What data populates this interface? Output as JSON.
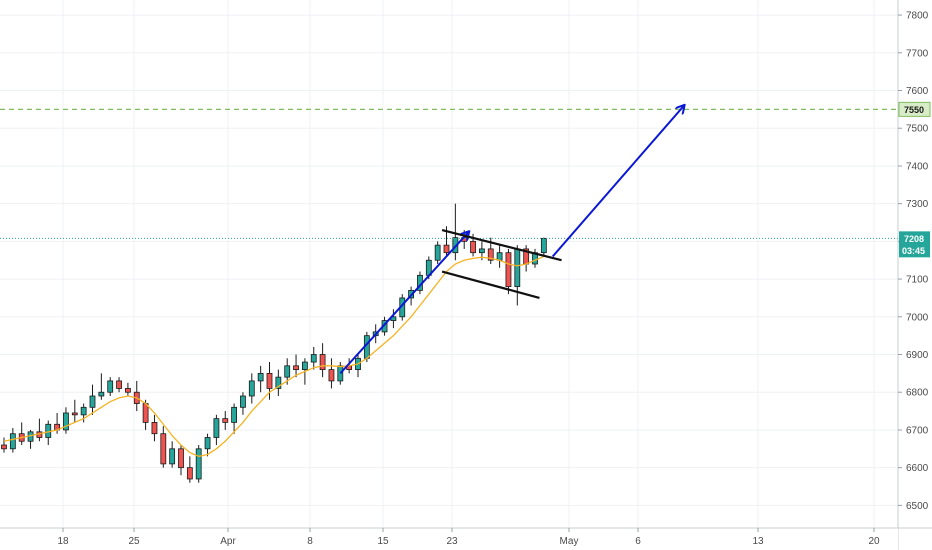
{
  "chart_data": {
    "type": "candlestick",
    "title": "",
    "xlabel": "",
    "ylabel": "",
    "ylim": [
      6440,
      7840
    ],
    "y_ticks": [
      6500,
      6600,
      6700,
      6800,
      6900,
      7000,
      7100,
      7200,
      7300,
      7400,
      7500,
      7600,
      7700,
      7800
    ],
    "x_ticks": [
      "18",
      "25",
      "Apr",
      "8",
      "15",
      "23",
      "May",
      "6",
      "13",
      "20"
    ],
    "grid": true,
    "colors": {
      "up": "#26a69a",
      "down": "#ef5350",
      "candle_border": "#1b1b1b",
      "moving_average": "#f5b324",
      "arrows": "#0a18d6",
      "flag_lines": "#111111",
      "target_line": "#7fbf5f",
      "last_price_line": "#26a69a"
    },
    "price_axis_badges": {
      "last_price": "7208",
      "countdown": "03:45",
      "target": "7550"
    },
    "target_level": 7550,
    "last_price": 7208,
    "ohlc": [
      [
        6660,
        6680,
        6640,
        6650
      ],
      [
        6650,
        6705,
        6640,
        6690
      ],
      [
        6690,
        6720,
        6660,
        6670
      ],
      [
        6670,
        6700,
        6650,
        6695
      ],
      [
        6695,
        6730,
        6670,
        6680
      ],
      [
        6680,
        6725,
        6660,
        6715
      ],
      [
        6715,
        6745,
        6690,
        6700
      ],
      [
        6700,
        6760,
        6690,
        6745
      ],
      [
        6745,
        6780,
        6720,
        6740
      ],
      [
        6740,
        6770,
        6720,
        6760
      ],
      [
        6760,
        6820,
        6740,
        6790
      ],
      [
        6790,
        6850,
        6780,
        6800
      ],
      [
        6800,
        6840,
        6790,
        6830
      ],
      [
        6830,
        6840,
        6800,
        6810
      ],
      [
        6810,
        6825,
        6790,
        6800
      ],
      [
        6800,
        6830,
        6750,
        6770
      ],
      [
        6770,
        6780,
        6700,
        6720
      ],
      [
        6720,
        6740,
        6670,
        6690
      ],
      [
        6690,
        6710,
        6600,
        6610
      ],
      [
        6610,
        6670,
        6600,
        6650
      ],
      [
        6650,
        6660,
        6580,
        6600
      ],
      [
        6600,
        6630,
        6560,
        6570
      ],
      [
        6570,
        6660,
        6560,
        6650
      ],
      [
        6650,
        6690,
        6630,
        6680
      ],
      [
        6680,
        6740,
        6660,
        6730
      ],
      [
        6730,
        6750,
        6700,
        6720
      ],
      [
        6720,
        6770,
        6690,
        6760
      ],
      [
        6760,
        6800,
        6740,
        6790
      ],
      [
        6790,
        6850,
        6770,
        6830
      ],
      [
        6830,
        6870,
        6800,
        6850
      ],
      [
        6850,
        6880,
        6780,
        6810
      ],
      [
        6810,
        6860,
        6790,
        6840
      ],
      [
        6840,
        6890,
        6820,
        6870
      ],
      [
        6870,
        6900,
        6840,
        6860
      ],
      [
        6860,
        6890,
        6820,
        6880
      ],
      [
        6880,
        6920,
        6860,
        6900
      ],
      [
        6900,
        6930,
        6840,
        6860
      ],
      [
        6860,
        6890,
        6810,
        6830
      ],
      [
        6830,
        6880,
        6820,
        6870
      ],
      [
        6870,
        6890,
        6850,
        6860
      ],
      [
        6860,
        6900,
        6840,
        6890
      ],
      [
        6890,
        6960,
        6880,
        6950
      ],
      [
        6950,
        6980,
        6930,
        6960
      ],
      [
        6960,
        7000,
        6950,
        6990
      ],
      [
        6990,
        7020,
        6970,
        7000
      ],
      [
        7000,
        7060,
        6990,
        7050
      ],
      [
        7050,
        7080,
        7030,
        7070
      ],
      [
        7070,
        7120,
        7060,
        7110
      ],
      [
        7110,
        7160,
        7100,
        7150
      ],
      [
        7150,
        7200,
        7140,
        7190
      ],
      [
        7190,
        7240,
        7160,
        7170
      ],
      [
        7170,
        7300,
        7150,
        7210
      ],
      [
        7210,
        7230,
        7180,
        7200
      ],
      [
        7200,
        7220,
        7160,
        7170
      ],
      [
        7170,
        7200,
        7150,
        7180
      ],
      [
        7180,
        7210,
        7140,
        7150
      ],
      [
        7150,
        7190,
        7130,
        7170
      ],
      [
        7170,
        7180,
        7060,
        7080
      ],
      [
        7080,
        7190,
        7030,
        7180
      ],
      [
        7180,
        7190,
        7120,
        7140
      ],
      [
        7140,
        7180,
        7130,
        7170
      ],
      [
        7170,
        7210,
        7160,
        7208
      ]
    ],
    "moving_average": [
      6670,
      6675,
      6680,
      6685,
      6690,
      6695,
      6700,
      6710,
      6720,
      6730,
      6745,
      6760,
      6775,
      6785,
      6790,
      6785,
      6770,
      6745,
      6715,
      6685,
      6660,
      6640,
      6630,
      6635,
      6650,
      6670,
      6695,
      6720,
      6750,
      6775,
      6800,
      6815,
      6830,
      6845,
      6855,
      6865,
      6870,
      6870,
      6868,
      6870,
      6875,
      6890,
      6910,
      6930,
      6950,
      6975,
      7000,
      7030,
      7060,
      7090,
      7120,
      7140,
      7150,
      7155,
      7158,
      7155,
      7150,
      7140,
      7135,
      7140,
      7150,
      7160
    ]
  }
}
